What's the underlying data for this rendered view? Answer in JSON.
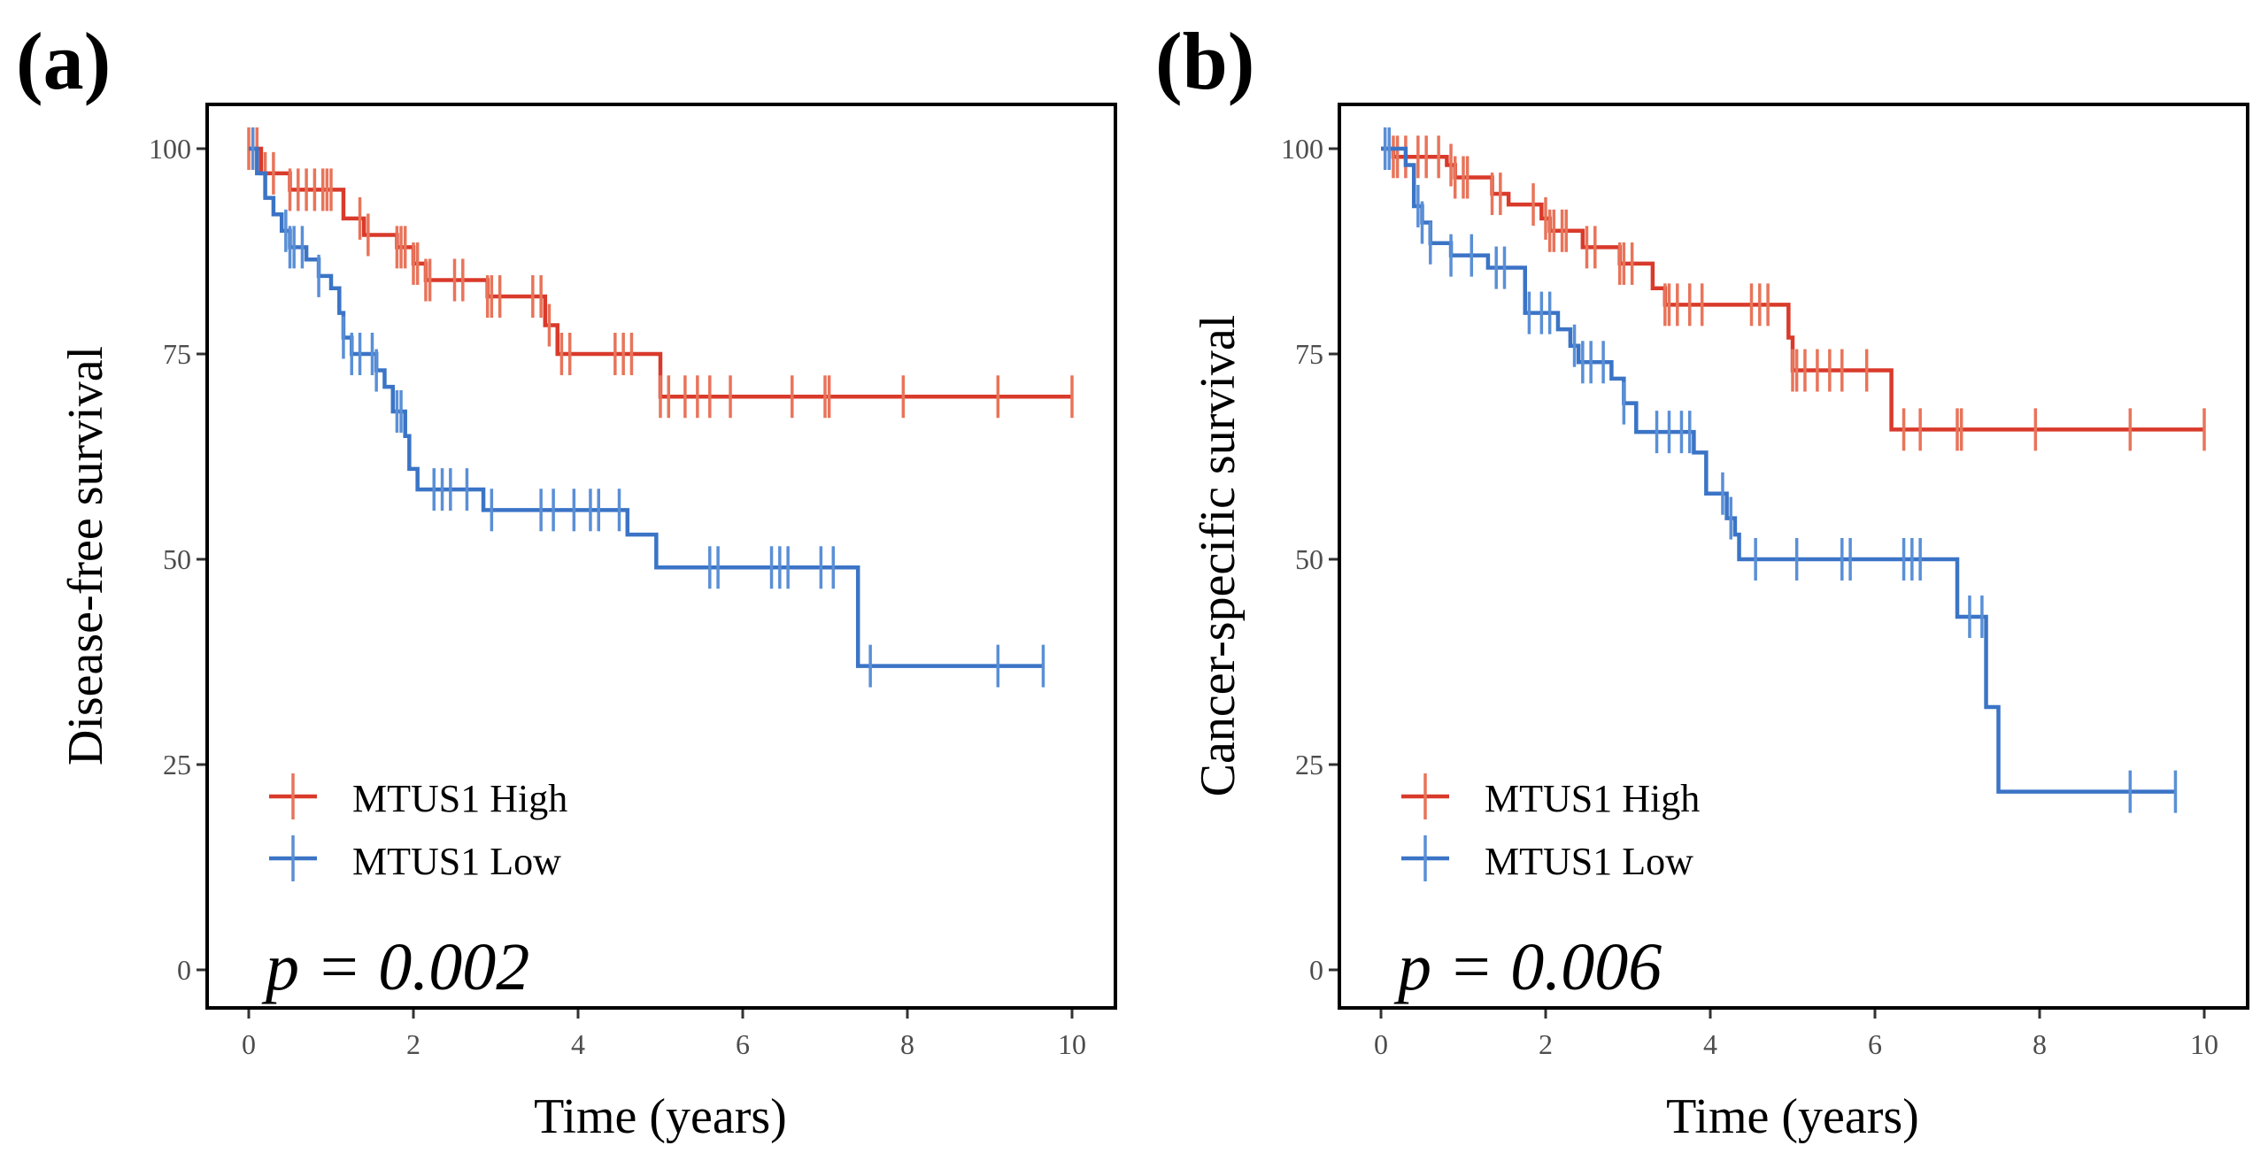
{
  "colors": {
    "high": "#d93a2b",
    "low": "#3b74c6",
    "censor_high": "#e8745a",
    "censor_low": "#5a8fd6"
  },
  "chart_data": [
    {
      "type": "line",
      "panel_label": "(a)",
      "xlabel": "Time (years)",
      "ylabel": "Disease-free survival",
      "xlim": [
        0,
        10
      ],
      "ylim": [
        0,
        100
      ],
      "xticks": [
        "0",
        "2",
        "4",
        "6",
        "8",
        "10"
      ],
      "yticks": [
        "0",
        "25",
        "50",
        "75",
        "100"
      ],
      "legend": {
        "position": "bottom-left",
        "entries": [
          "MTUS1 High",
          "MTUS1 Low"
        ]
      },
      "annotation": "p = 0.002",
      "series": [
        {
          "name": "MTUS1 High",
          "key": "high",
          "steps": [
            [
              0,
              100
            ],
            [
              0.15,
              97
            ],
            [
              0.5,
              95
            ],
            [
              1.15,
              91.5
            ],
            [
              1.4,
              89.5
            ],
            [
              1.8,
              88
            ],
            [
              2.0,
              86
            ],
            [
              2.15,
              84
            ],
            [
              2.9,
              82
            ],
            [
              3.6,
              78.5
            ],
            [
              3.75,
              75
            ],
            [
              5.0,
              69.8
            ]
          ],
          "end": 10,
          "censors": [
            0.0,
            0.05,
            0.1,
            0.2,
            0.3,
            0.5,
            0.6,
            0.7,
            0.8,
            0.9,
            0.95,
            1.0,
            1.35,
            1.45,
            1.8,
            1.85,
            1.9,
            2.0,
            2.05,
            2.15,
            2.2,
            2.5,
            2.6,
            2.9,
            2.95,
            3.05,
            3.45,
            3.55,
            3.65,
            3.8,
            3.9,
            4.45,
            4.55,
            4.65,
            5.0,
            5.1,
            5.3,
            5.45,
            5.6,
            5.85,
            6.6,
            7.0,
            7.05,
            7.95,
            9.1,
            10.0
          ]
        },
        {
          "name": "MTUS1 Low",
          "key": "low",
          "steps": [
            [
              0,
              100
            ],
            [
              0.1,
              97
            ],
            [
              0.2,
              94
            ],
            [
              0.3,
              92
            ],
            [
              0.4,
              90
            ],
            [
              0.5,
              88
            ],
            [
              0.7,
              86.5
            ],
            [
              0.85,
              84.5
            ],
            [
              1.0,
              83
            ],
            [
              1.1,
              80
            ],
            [
              1.15,
              77
            ],
            [
              1.25,
              75
            ],
            [
              1.55,
              73
            ],
            [
              1.65,
              71
            ],
            [
              1.75,
              68
            ],
            [
              1.9,
              65
            ],
            [
              1.95,
              61
            ],
            [
              2.05,
              58.5
            ],
            [
              2.85,
              56
            ],
            [
              4.6,
              53
            ],
            [
              4.95,
              49
            ],
            [
              7.4,
              37
            ]
          ],
          "end": 9.65,
          "censors": [
            0.05,
            0.45,
            0.5,
            0.55,
            0.65,
            0.85,
            1.15,
            1.25,
            1.35,
            1.5,
            1.55,
            1.8,
            1.85,
            2.25,
            2.35,
            2.45,
            2.65,
            2.95,
            3.55,
            3.7,
            3.95,
            4.15,
            4.25,
            4.5,
            5.6,
            5.7,
            6.35,
            6.45,
            6.55,
            6.95,
            7.1,
            7.55,
            9.1,
            9.65
          ]
        }
      ]
    },
    {
      "type": "line",
      "panel_label": "(b)",
      "xlabel": "Time (years)",
      "ylabel": "Cancer-specific survival",
      "xlim": [
        0,
        10
      ],
      "ylim": [
        0,
        100
      ],
      "xticks": [
        "0",
        "2",
        "4",
        "6",
        "8",
        "10"
      ],
      "yticks": [
        "0",
        "25",
        "50",
        "75",
        "100"
      ],
      "legend": {
        "position": "bottom-left",
        "entries": [
          "MTUS1 High",
          "MTUS1 Low"
        ]
      },
      "annotation": "p = 0.006",
      "series": [
        {
          "name": "MTUS1 High",
          "key": "high",
          "steps": [
            [
              0,
              100
            ],
            [
              0.15,
              99
            ],
            [
              0.8,
              98
            ],
            [
              0.9,
              96.5
            ],
            [
              1.35,
              94.5
            ],
            [
              1.55,
              93.2
            ],
            [
              1.95,
              91.5
            ],
            [
              2.05,
              90
            ],
            [
              2.45,
              88
            ],
            [
              2.9,
              86
            ],
            [
              3.3,
              83
            ],
            [
              3.45,
              81
            ],
            [
              4.95,
              77
            ],
            [
              5.0,
              73
            ],
            [
              6.2,
              65.8
            ]
          ],
          "end": 10,
          "censors": [
            0.1,
            0.15,
            0.2,
            0.3,
            0.45,
            0.55,
            0.7,
            0.85,
            0.9,
            1.0,
            1.05,
            1.35,
            1.45,
            1.85,
            2.0,
            2.05,
            2.1,
            2.2,
            2.25,
            2.5,
            2.6,
            2.9,
            2.95,
            3.05,
            3.45,
            3.5,
            3.6,
            3.75,
            3.9,
            4.5,
            4.6,
            4.7,
            5.0,
            5.05,
            5.15,
            5.3,
            5.45,
            5.6,
            5.9,
            6.35,
            6.55,
            7.0,
            7.05,
            7.95,
            9.1,
            10.0
          ]
        },
        {
          "name": "MTUS1 Low",
          "key": "low",
          "steps": [
            [
              0,
              100
            ],
            [
              0.3,
              98
            ],
            [
              0.4,
              93
            ],
            [
              0.5,
              91
            ],
            [
              0.6,
              88.5
            ],
            [
              0.85,
              87
            ],
            [
              1.3,
              85.5
            ],
            [
              1.75,
              80
            ],
            [
              2.15,
              78
            ],
            [
              2.3,
              76
            ],
            [
              2.4,
              74
            ],
            [
              2.8,
              72
            ],
            [
              2.95,
              69
            ],
            [
              3.1,
              65.5
            ],
            [
              3.8,
              63
            ],
            [
              3.95,
              58
            ],
            [
              4.2,
              55
            ],
            [
              4.3,
              53
            ],
            [
              4.35,
              50
            ],
            [
              7.0,
              43
            ],
            [
              7.35,
              32
            ],
            [
              7.5,
              21.7
            ]
          ],
          "end": 9.65,
          "censors": [
            0.05,
            0.1,
            0.45,
            0.5,
            0.6,
            0.85,
            1.1,
            1.4,
            1.5,
            1.8,
            1.95,
            2.05,
            2.35,
            2.45,
            2.55,
            2.7,
            2.95,
            3.35,
            3.5,
            3.65,
            3.75,
            4.15,
            4.25,
            4.55,
            5.05,
            5.6,
            5.7,
            6.35,
            6.45,
            6.55,
            7.15,
            7.3,
            9.1,
            9.65
          ]
        }
      ]
    }
  ]
}
